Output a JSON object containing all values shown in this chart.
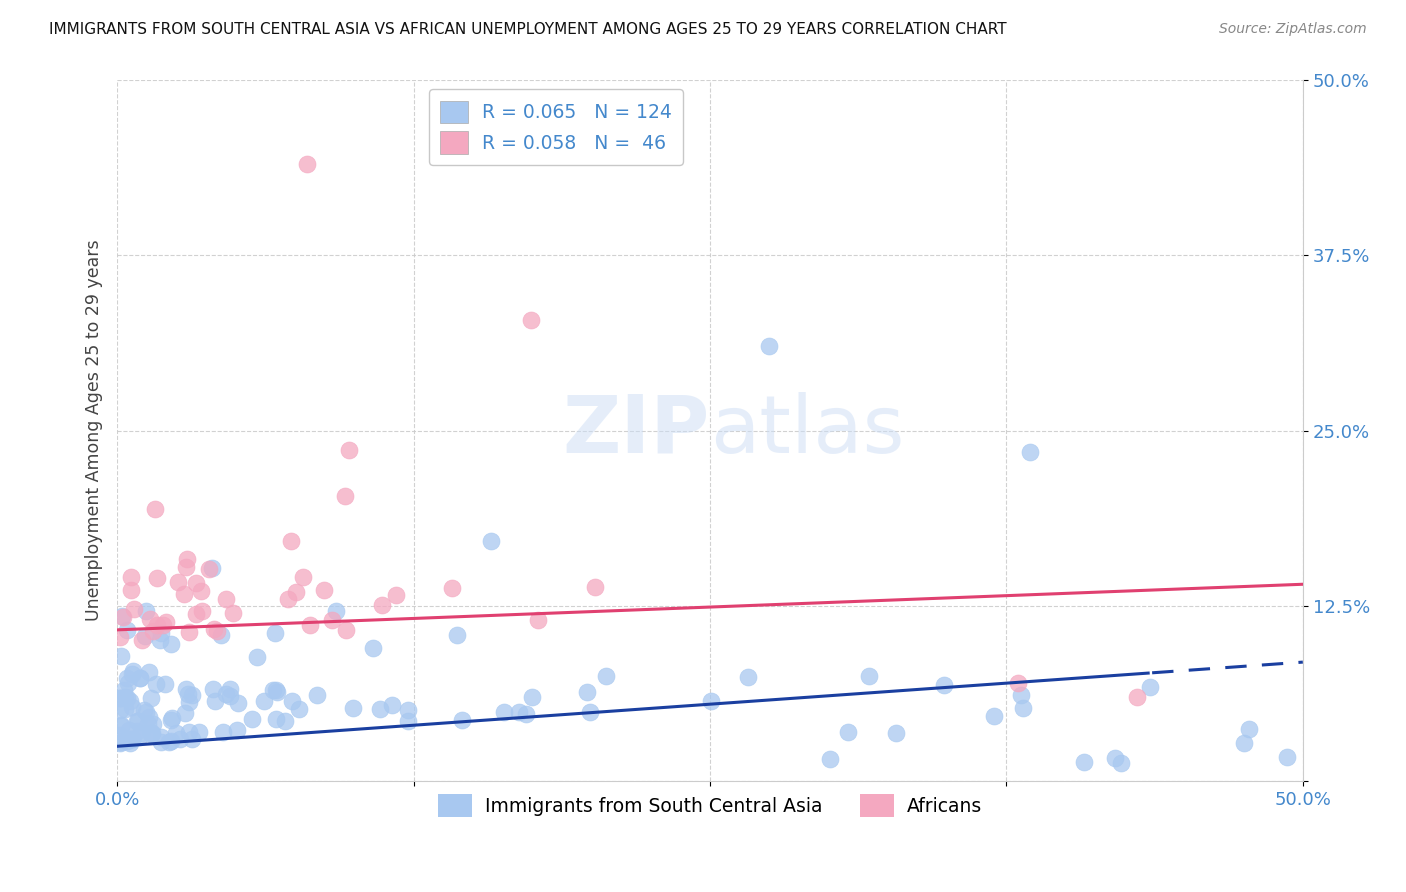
{
  "title": "IMMIGRANTS FROM SOUTH CENTRAL ASIA VS AFRICAN UNEMPLOYMENT AMONG AGES 25 TO 29 YEARS CORRELATION CHART",
  "source": "Source: ZipAtlas.com",
  "ylabel": "Unemployment Among Ages 25 to 29 years",
  "xlim": [
    0.0,
    0.5
  ],
  "ylim": [
    0.0,
    0.5
  ],
  "blue_color": "#a8c8f0",
  "pink_color": "#f4a8c0",
  "blue_line_color": "#1a3fa0",
  "pink_line_color": "#e04070",
  "R_blue": 0.065,
  "N_blue": 124,
  "R_pink": 0.058,
  "N_pink": 46,
  "legend_label_blue": "Immigrants from South Central Asia",
  "legend_label_pink": "Africans",
  "watermark_zip": "ZIP",
  "watermark_atlas": "atlas",
  "background_color": "#ffffff",
  "tick_color": "#4488cc",
  "grid_color": "#cccccc",
  "title_color": "#111111",
  "source_color": "#888888",
  "ylabel_color": "#444444"
}
